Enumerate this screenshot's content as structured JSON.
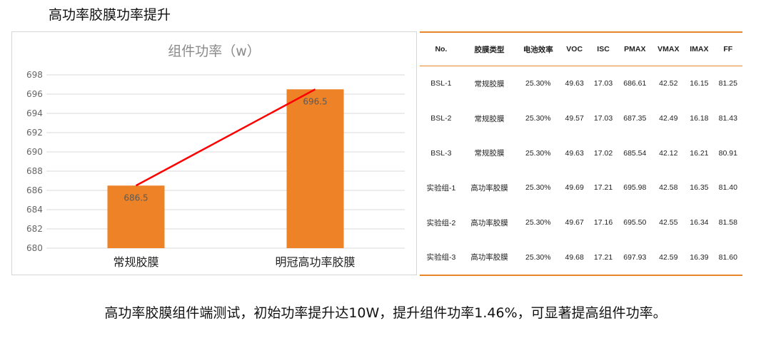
{
  "page": {
    "title": "高功率胶膜功率提升",
    "conclusion": "高功率胶膜组件端测试，初始功率提升达10W，提升组件功率1.46%，可显著提高组件功率。"
  },
  "chart_data": {
    "type": "bar",
    "title": "组件功率（w）",
    "categories": [
      "常规胶膜",
      "明冠高功率胶膜"
    ],
    "values": [
      686.5,
      696.5
    ],
    "data_labels": [
      "686.5",
      "696.5"
    ],
    "ylim": [
      680,
      698
    ],
    "yticks": [
      680,
      682,
      684,
      686,
      688,
      690,
      692,
      694,
      696,
      698
    ],
    "grid": true,
    "bar_color": "#ee8226",
    "trend_line": {
      "color": "#ff0000",
      "from": 686.5,
      "to": 696.5
    },
    "xlabel": "",
    "ylabel": ""
  },
  "table": {
    "headers": [
      "No.",
      "胶膜类型",
      "电池效率",
      "VOC",
      "ISC",
      "PMAX",
      "VMAX",
      "IMAX",
      "FF"
    ],
    "rows": [
      [
        "BSL-1",
        "常规胶膜",
        "25.30%",
        "49.63",
        "17.03",
        "686.61",
        "42.52",
        "16.15",
        "81.25"
      ],
      [
        "BSL-2",
        "常规胶膜",
        "25.30%",
        "49.57",
        "17.03",
        "687.35",
        "42.49",
        "16.18",
        "81.43"
      ],
      [
        "BSL-3",
        "常规胶膜",
        "25.30%",
        "49.63",
        "17.02",
        "685.54",
        "42.12",
        "16.21",
        "80.91"
      ],
      [
        "实验组-1",
        "高功率胶膜",
        "25.30%",
        "49.69",
        "17.21",
        "695.98",
        "42.58",
        "16.35",
        "81.40"
      ],
      [
        "实验组-2",
        "高功率胶膜",
        "25.30%",
        "49.67",
        "17.16",
        "695.50",
        "42.55",
        "16.34",
        "81.58"
      ],
      [
        "实验组-3",
        "高功率胶膜",
        "25.30%",
        "49.68",
        "17.21",
        "697.93",
        "42.59",
        "16.39",
        "81.60"
      ]
    ],
    "border_color": "#e8862b"
  }
}
